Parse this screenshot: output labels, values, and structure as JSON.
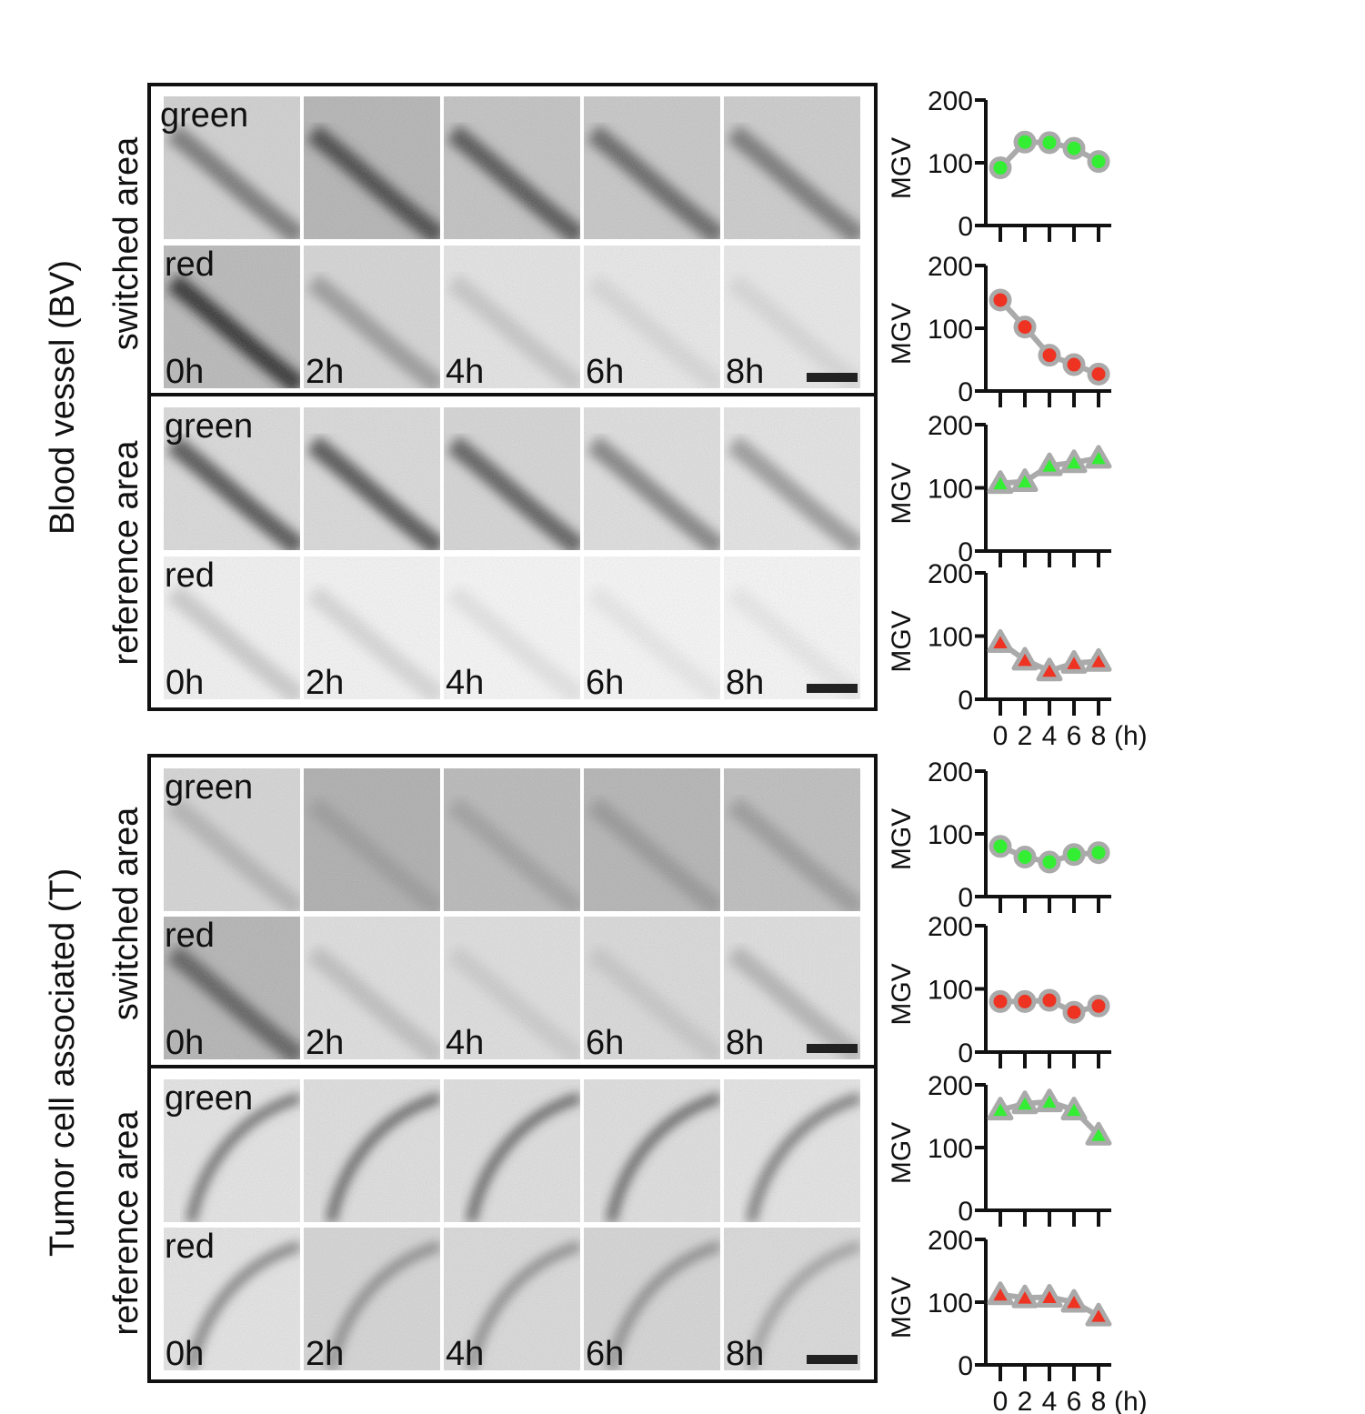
{
  "side_labels": {
    "blood_vessel": "Blood vessel (BV)",
    "tumor_cell": "Tumor cell associated (T)",
    "switched": "switched area",
    "reference": "reference area"
  },
  "channels": {
    "green": "green",
    "red": "red"
  },
  "time_points": [
    "0h",
    "2h",
    "4h",
    "6h",
    "8h"
  ],
  "chart_data": [
    {
      "type": "line",
      "x": [
        0,
        2,
        4,
        6,
        8
      ],
      "ylim": [
        0,
        200
      ],
      "yticks": [
        "0",
        "100",
        "200"
      ],
      "ylabel": "MGV",
      "xticks": [],
      "xunit": "",
      "marker": "circle",
      "marker_color": "#33ee33",
      "series": [
        {
          "values": [
            92,
            133,
            132,
            123,
            102
          ]
        }
      ]
    },
    {
      "type": "line",
      "x": [
        0,
        2,
        4,
        6,
        8
      ],
      "ylim": [
        0,
        200
      ],
      "yticks": [
        "0",
        "100",
        "200"
      ],
      "ylabel": "MGV",
      "xticks": [],
      "xunit": "",
      "marker": "circle",
      "marker_color": "#ee3322",
      "series": [
        {
          "values": [
            145,
            102,
            57,
            42,
            27
          ]
        }
      ]
    },
    {
      "type": "line",
      "x": [
        0,
        2,
        4,
        6,
        8
      ],
      "ylim": [
        0,
        200
      ],
      "yticks": [
        "0",
        "100",
        "200"
      ],
      "ylabel": "MGV",
      "xticks": [],
      "xunit": "",
      "marker": "triangle",
      "marker_color": "#33ee33",
      "series": [
        {
          "values": [
            107,
            110,
            135,
            140,
            147
          ]
        }
      ]
    },
    {
      "type": "line",
      "x": [
        0,
        2,
        4,
        6,
        8
      ],
      "ylim": [
        0,
        200
      ],
      "yticks": [
        "0",
        "100",
        "200"
      ],
      "ylabel": "MGV",
      "xticks": [
        "0",
        "2",
        "4",
        "6",
        "8"
      ],
      "xunit": "(h)",
      "marker": "triangle",
      "marker_color": "#ee3322",
      "series": [
        {
          "values": [
            90,
            62,
            45,
            57,
            60
          ]
        }
      ]
    },
    {
      "type": "line",
      "x": [
        0,
        2,
        4,
        6,
        8
      ],
      "ylim": [
        0,
        200
      ],
      "yticks": [
        "0",
        "100",
        "200"
      ],
      "ylabel": "MGV",
      "xticks": [],
      "xunit": "",
      "marker": "circle",
      "marker_color": "#33ee33",
      "series": [
        {
          "values": [
            80,
            63,
            55,
            67,
            70
          ]
        }
      ]
    },
    {
      "type": "line",
      "x": [
        0,
        2,
        4,
        6,
        8
      ],
      "ylim": [
        0,
        200
      ],
      "yticks": [
        "0",
        "100",
        "200"
      ],
      "ylabel": "MGV",
      "xticks": [],
      "xunit": "",
      "marker": "circle",
      "marker_color": "#ee3322",
      "series": [
        {
          "values": [
            80,
            80,
            82,
            63,
            73
          ]
        }
      ]
    },
    {
      "type": "line",
      "x": [
        0,
        2,
        4,
        6,
        8
      ],
      "ylim": [
        0,
        200
      ],
      "yticks": [
        "0",
        "100",
        "200"
      ],
      "ylabel": "MGV",
      "xticks": [],
      "xunit": "",
      "marker": "triangle",
      "marker_color": "#33ee33",
      "series": [
        {
          "values": [
            160,
            170,
            173,
            160,
            120
          ]
        }
      ]
    },
    {
      "type": "line",
      "x": [
        0,
        2,
        4,
        6,
        8
      ],
      "ylim": [
        0,
        200
      ],
      "yticks": [
        "0",
        "100",
        "200"
      ],
      "ylabel": "MGV",
      "xticks": [
        "0",
        "2",
        "4",
        "6",
        "8"
      ],
      "xunit": "(h)",
      "marker": "triangle",
      "marker_color": "#ee3322",
      "series": [
        {
          "values": [
            112,
            107,
            108,
            100,
            78
          ]
        }
      ]
    }
  ]
}
